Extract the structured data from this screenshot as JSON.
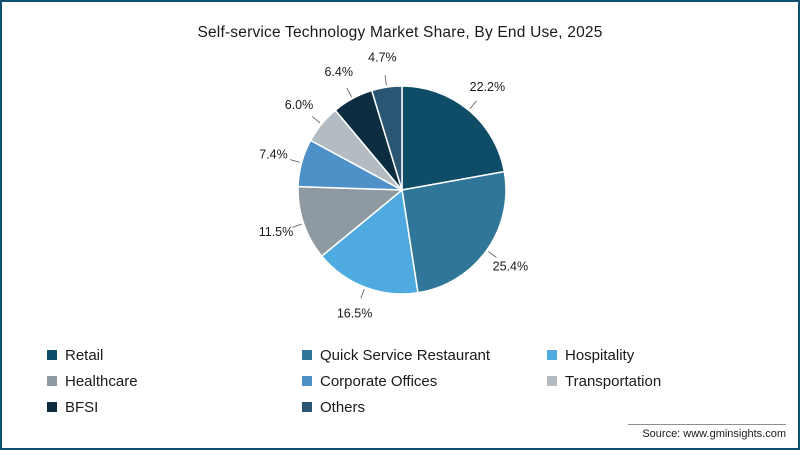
{
  "title": "Self-service Technology Market Share, By End Use, 2025",
  "source": "Source: www.gminsights.com",
  "border_color": "#11506f",
  "chart_data": {
    "type": "pie",
    "title": "Self-service Technology Market Share, By End Use, 2025",
    "start_angle_deg": 0,
    "direction": "clockwise",
    "legend_position": "bottom",
    "legend_columns": 3,
    "slices": [
      {
        "label": "Retail",
        "value": 22.2,
        "display": "22.2%",
        "color": "#0e4c68"
      },
      {
        "label": "Quick Service Restaurant",
        "value": 25.4,
        "display": "25.4%",
        "color": "#2f7698"
      },
      {
        "label": "Hospitality",
        "value": 16.5,
        "display": "16.5%",
        "color": "#4fabdf"
      },
      {
        "label": "Healthcare",
        "value": 11.5,
        "display": "11.5%",
        "color": "#8e99a2"
      },
      {
        "label": "Corporate Offices",
        "value": 7.4,
        "display": "7.4%",
        "color": "#4e90c8"
      },
      {
        "label": "Transportation",
        "value": 6.0,
        "display": "6.0%",
        "color": "#b4bcc3"
      },
      {
        "label": "BFSI",
        "value": 6.4,
        "display": "6.4%",
        "color": "#0b2d3f"
      },
      {
        "label": "Others",
        "value": 4.7,
        "display": "4.7%",
        "color": "#2a5674"
      }
    ]
  }
}
